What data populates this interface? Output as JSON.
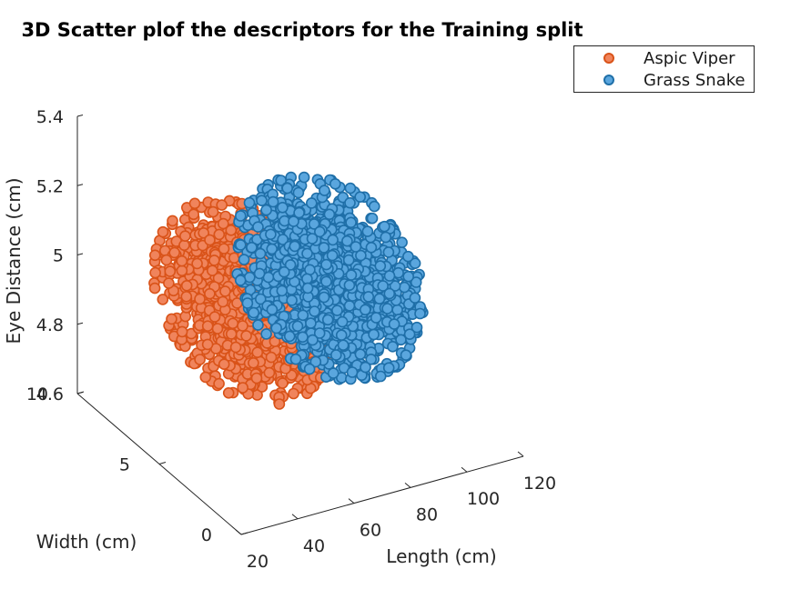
{
  "chart_data": {
    "type": "scatter",
    "subtype": "scatter3d",
    "title": "3D Scatter plof the descriptors for the Training split",
    "xlabel": "Length (cm)",
    "ylabel": "Width (cm)",
    "zlabel": "Eye Distance (cm)",
    "xlim": [
      20,
      120
    ],
    "ylim": [
      0,
      10
    ],
    "zlim": [
      4.6,
      5.4
    ],
    "x_ticks": [
      "20",
      "40",
      "60",
      "80",
      "100",
      "120"
    ],
    "y_ticks": [
      "0",
      "5",
      "10"
    ],
    "z_ticks": [
      "4.6",
      "4.8",
      "5",
      "5.2",
      "5.4"
    ],
    "grid": false,
    "legend_position": "top-right",
    "series": [
      {
        "name": "Aspic Viper",
        "color": "#F0845C",
        "edge_color": "#D95319",
        "n_points": 1500,
        "approx_center": {
          "length": 50,
          "width": 5,
          "eye_distance": 5.0
        },
        "approx_spread_sd": {
          "length": 9,
          "width": 1.7,
          "eye_distance": 0.1
        }
      },
      {
        "name": "Grass Snake",
        "color": "#5AA6DE",
        "edge_color": "#1F6FA8",
        "n_points": 1500,
        "approx_center": {
          "length": 80,
          "width": 5,
          "eye_distance": 5.0
        },
        "approx_spread_sd": {
          "length": 10,
          "width": 1.7,
          "eye_distance": 0.1
        }
      }
    ]
  }
}
